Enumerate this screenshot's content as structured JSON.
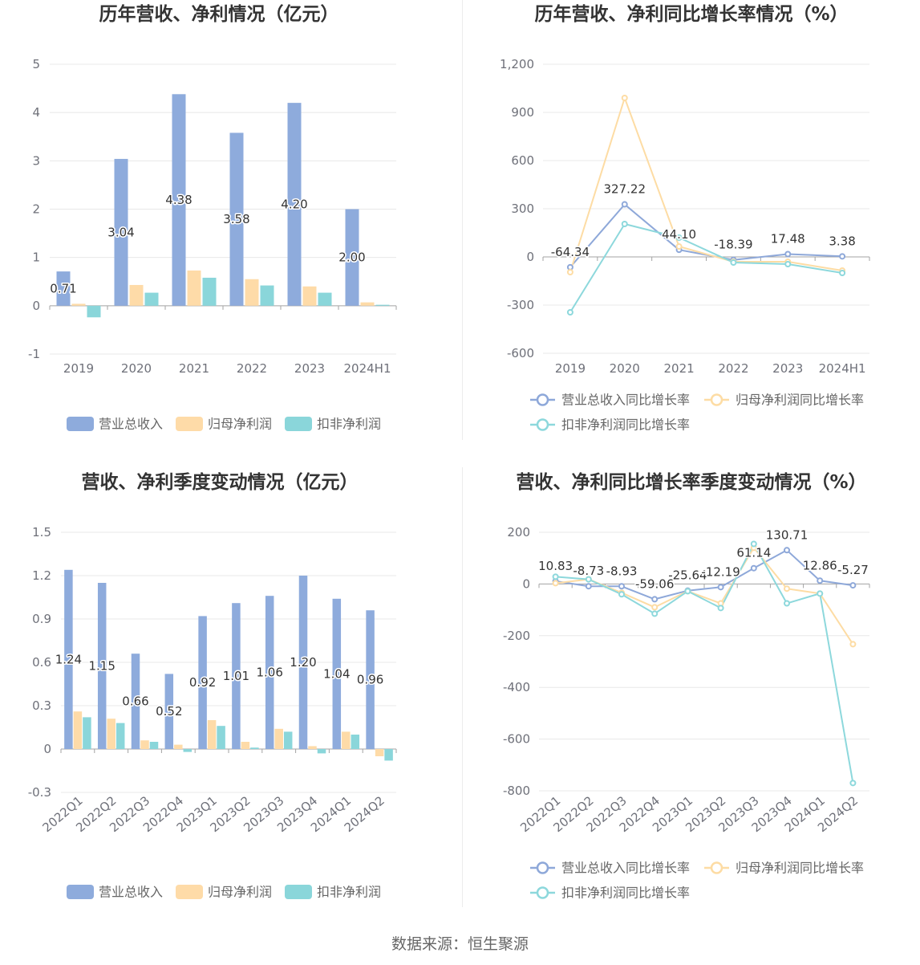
{
  "source": "数据来源：恒生聚源",
  "chart_data": [
    {
      "type": "bar",
      "title": "历年营收、净利情况（亿元）",
      "categories": [
        "2019",
        "2020",
        "2021",
        "2022",
        "2023",
        "2024H1"
      ],
      "ylim": [
        -1,
        5
      ],
      "yticks": [
        5,
        4,
        3,
        2,
        1,
        0,
        -1
      ],
      "ytick_labels": [
        "5",
        "4",
        "3",
        "2",
        "1",
        "0",
        "-1"
      ],
      "grid": true,
      "legend": "bottom",
      "series": [
        {
          "name": "营业总收入",
          "color": "#8eabdc",
          "values": [
            0.71,
            3.04,
            4.38,
            3.58,
            4.2,
            2.0
          ],
          "labels": [
            "0.71",
            "3.04",
            "4.38",
            "3.58",
            "4.20",
            "2.00"
          ]
        },
        {
          "name": "归母净利润",
          "color": "#fedba8",
          "values": [
            0.04,
            0.43,
            0.73,
            0.55,
            0.4,
            0.07
          ]
        },
        {
          "name": "扣非净利润",
          "color": "#8ad6da",
          "values": [
            -0.24,
            0.27,
            0.58,
            0.42,
            0.27,
            0.02
          ]
        }
      ]
    },
    {
      "type": "line",
      "title": "历年营收、净利同比增长率情况（%）",
      "categories": [
        "2019",
        "2020",
        "2021",
        "2022",
        "2023",
        "2024H1"
      ],
      "ylim": [
        -600,
        1200
      ],
      "yticks": [
        1200,
        900,
        600,
        300,
        0,
        -300,
        -600
      ],
      "ytick_labels": [
        "1,200",
        "900",
        "600",
        "300",
        "0",
        "-300",
        "-600"
      ],
      "grid": true,
      "legend": "bottom",
      "series": [
        {
          "name": "营业总收入同比增长率",
          "color": "#8ea8d9",
          "values": [
            -64.34,
            327.22,
            44.1,
            -18.39,
            17.48,
            3.38
          ],
          "labels": [
            "-64.34",
            "327.22",
            "44.10",
            "-18.39",
            "17.48",
            "3.38"
          ]
        },
        {
          "name": "归母净利润同比增长率",
          "color": "#fddca4",
          "values": [
            -95,
            990,
            65,
            -30,
            -30,
            -85
          ]
        },
        {
          "name": "扣非净利润同比增长率",
          "color": "#8dd8dc",
          "values": [
            -345,
            205,
            120,
            -35,
            -45,
            -100
          ]
        }
      ]
    },
    {
      "type": "bar",
      "title": "营收、净利季度变动情况（亿元）",
      "categories": [
        "2022Q1",
        "2022Q2",
        "2022Q3",
        "2022Q4",
        "2023Q1",
        "2023Q2",
        "2023Q3",
        "2023Q4",
        "2024Q1",
        "2024Q2"
      ],
      "ylim": [
        -0.3,
        1.5
      ],
      "yticks": [
        1.5,
        1.2,
        0.9,
        0.6,
        0.3,
        0,
        -0.3
      ],
      "ytick_labels": [
        "1.5",
        "1.2",
        "0.9",
        "0.6",
        "0.3",
        "0",
        "-0.3"
      ],
      "grid": true,
      "legend": "bottom",
      "series": [
        {
          "name": "营业总收入",
          "color": "#8eabdc",
          "values": [
            1.24,
            1.15,
            0.66,
            0.52,
            0.92,
            1.01,
            1.06,
            1.2,
            1.04,
            0.96
          ],
          "labels": [
            "1.24",
            "1.15",
            "0.66",
            "0.52",
            "0.92",
            "1.01",
            "1.06",
            "1.20",
            "1.04",
            "0.96"
          ]
        },
        {
          "name": "归母净利润",
          "color": "#fedba8",
          "values": [
            0.26,
            0.21,
            0.06,
            0.03,
            0.2,
            0.05,
            0.14,
            0.02,
            0.12,
            -0.05
          ]
        },
        {
          "name": "扣非净利润",
          "color": "#8ad6da",
          "values": [
            0.22,
            0.18,
            0.05,
            -0.02,
            0.16,
            0.01,
            0.12,
            -0.03,
            0.1,
            -0.08
          ]
        }
      ]
    },
    {
      "type": "line",
      "title": "营收、净利同比增长率季度变动情况（%）",
      "categories": [
        "2022Q1",
        "2022Q2",
        "2022Q3",
        "2022Q4",
        "2023Q1",
        "2023Q2",
        "2023Q3",
        "2023Q4",
        "2024Q1",
        "2024Q2"
      ],
      "ylim": [
        -800,
        200
      ],
      "yticks": [
        200,
        0,
        -200,
        -400,
        -600,
        -800
      ],
      "ytick_labels": [
        "200",
        "0",
        "-200",
        "-400",
        "-600",
        "-800"
      ],
      "grid": true,
      "legend": "bottom",
      "series": [
        {
          "name": "营业总收入同比增长率",
          "color": "#8ea8d9",
          "values": [
            10.83,
            -8.73,
            -8.93,
            -59.06,
            -25.64,
            -12.19,
            61.14,
            130.71,
            12.86,
            -5.27
          ],
          "labels": [
            "10.83",
            "-8.73",
            "-8.93",
            "-59.06",
            "-25.64",
            "-12.19",
            "61.14",
            "130.71",
            "12.86",
            "-5.27"
          ]
        },
        {
          "name": "归母净利润同比增长率",
          "color": "#fddca4",
          "values": [
            3,
            18,
            -34,
            -90,
            -28,
            -75,
            140,
            -18,
            -37,
            -233
          ]
        },
        {
          "name": "扣非净利润同比增长率",
          "color": "#8dd8dc",
          "values": [
            28,
            18,
            -40,
            -115,
            -28,
            -93,
            155,
            -75,
            -37,
            -770
          ]
        }
      ]
    }
  ]
}
